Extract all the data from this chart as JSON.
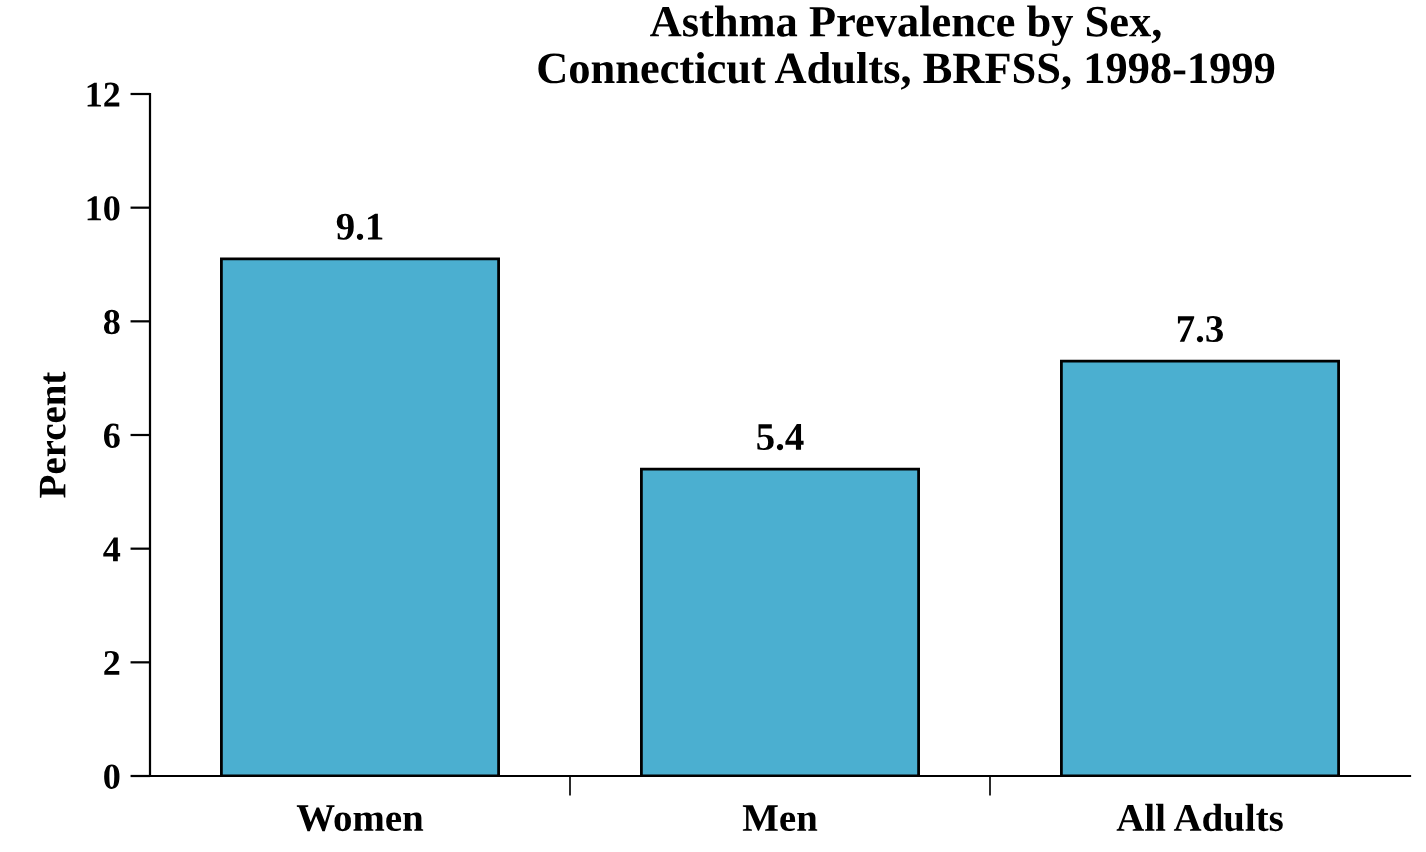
{
  "chart_data": {
    "type": "bar",
    "title": "Asthma Prevalence by Sex,\nConnecticut Adults, BRFSS, 1998-1999",
    "ylabel": "Percent",
    "categories": [
      "Women",
      "Men",
      "All Adults"
    ],
    "values": [
      9.1,
      5.4,
      7.3
    ],
    "color": "#4bafd0",
    "data_labels": true,
    "ylim": [
      0,
      12
    ],
    "yticks": [
      0,
      2,
      4,
      6,
      8,
      10,
      12
    ],
    "grid": false,
    "legend": false
  }
}
